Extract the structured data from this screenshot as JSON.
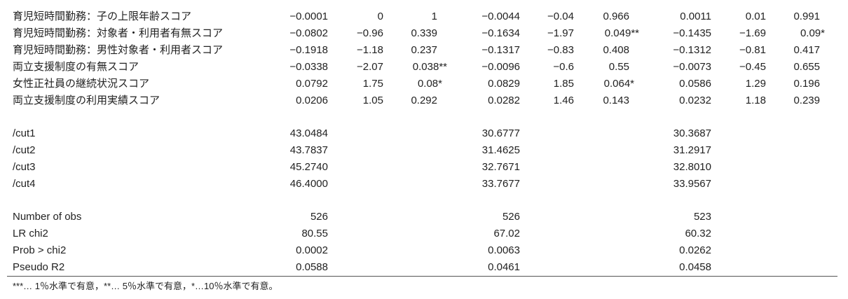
{
  "table": {
    "sections": [
      {
        "rows": [
          {
            "label": "育児短時間勤務：子の上限年齢スコア",
            "cells": [
              "−0.0001",
              "0",
              "1",
              "−0.0044",
              "−0.04",
              "0.966",
              "0.0011",
              "0.01",
              "0.991"
            ]
          },
          {
            "label": "育児短時間勤務：対象者・利用者有無スコア",
            "cells": [
              "−0.0802",
              "−0.96",
              "0.339",
              "−0.1634",
              "−1.97",
              "0.049**",
              "−0.1435",
              "−1.69",
              "0.09*"
            ]
          },
          {
            "label": "育児短時間勤務：男性対象者・利用者スコア",
            "cells": [
              "−0.1918",
              "−1.18",
              "0.237",
              "−0.1317",
              "−0.83",
              "0.408",
              "−0.1312",
              "−0.81",
              "0.417"
            ]
          },
          {
            "label": "両立支援制度の有無スコア",
            "cells": [
              "−0.0338",
              "−2.07",
              "0.038**",
              "−0.0096",
              "−0.6",
              "0.55",
              "−0.0073",
              "−0.45",
              "0.655"
            ]
          },
          {
            "label": "女性正社員の継続状況スコア",
            "cells": [
              "0.0792",
              "1.75",
              "0.08*",
              "0.0829",
              "1.85",
              "0.064*",
              "0.0586",
              "1.29",
              "0.196"
            ]
          },
          {
            "label": "両立支援制度の利用実績スコア",
            "cells": [
              "0.0206",
              "1.05",
              "0.292",
              "0.0282",
              "1.46",
              "0.143",
              "0.0232",
              "1.18",
              "0.239"
            ]
          }
        ]
      },
      {
        "rows": [
          {
            "label": "/cut1",
            "cells": [
              "43.0484",
              null,
              null,
              "30.6777",
              null,
              null,
              "30.3687"
            ]
          },
          {
            "label": "/cut2",
            "cells": [
              "43.7837",
              null,
              null,
              "31.4625",
              null,
              null,
              "31.2917"
            ]
          },
          {
            "label": "/cut3",
            "cells": [
              "45.2740",
              null,
              null,
              "32.7671",
              null,
              null,
              "32.8010"
            ]
          },
          {
            "label": "/cut4",
            "cells": [
              "46.4000",
              null,
              null,
              "33.7677",
              null,
              null,
              "33.9567"
            ]
          }
        ]
      },
      {
        "rows": [
          {
            "label": "Number of obs",
            "cells": [
              "526",
              null,
              null,
              "526",
              null,
              null,
              "523"
            ]
          },
          {
            "label": "LR chi2",
            "cells": [
              "80.55",
              null,
              null,
              "67.02",
              null,
              null,
              "60.32"
            ]
          },
          {
            "label": "Prob > chi2",
            "cells": [
              "0.0002",
              null,
              null,
              "0.0063",
              null,
              null,
              "0.0262"
            ]
          },
          {
            "label": "Pseudo R2",
            "cells": [
              "0.0588",
              null,
              null,
              "0.0461",
              null,
              null,
              "0.0458"
            ]
          }
        ]
      }
    ],
    "footnote": "***… 1％水準で有意，**… 5％水準で有意，*…10％水準で有意。"
  }
}
